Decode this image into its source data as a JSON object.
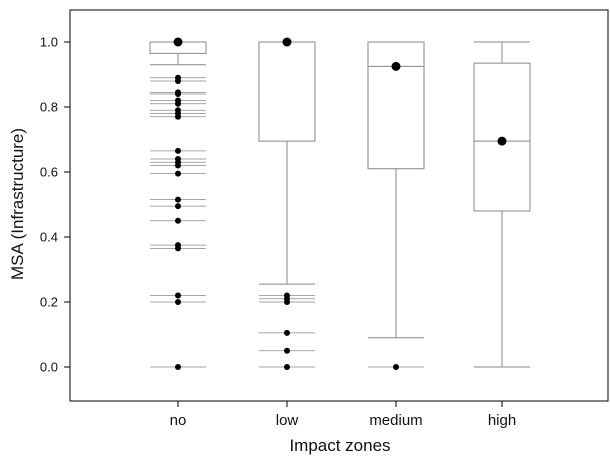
{
  "chart_data": {
    "type": "box",
    "title": "",
    "xlabel": "Impact zones",
    "ylabel": "MSA (Infrastructure)",
    "ylim": [
      -0.1,
      1.1
    ],
    "yticks": [
      "0.0",
      "0.2",
      "0.4",
      "0.6",
      "0.8",
      "1.0"
    ],
    "categories": [
      "no",
      "low",
      "medium",
      "high"
    ],
    "boxes": [
      {
        "category": "no",
        "q1": 0.965,
        "median": 1.0,
        "q3": 1.0,
        "whisker_low": 0.93,
        "whisker_high": 1.0,
        "mean": 1.0,
        "outliers": [
          0.89,
          0.88,
          0.845,
          0.84,
          0.82,
          0.81,
          0.79,
          0.78,
          0.77,
          0.665,
          0.64,
          0.63,
          0.62,
          0.595,
          0.515,
          0.495,
          0.45,
          0.375,
          0.365,
          0.22,
          0.2,
          0.0
        ]
      },
      {
        "category": "low",
        "q1": 0.695,
        "median": 1.0,
        "q3": 1.0,
        "whisker_low": 0.255,
        "whisker_high": 1.0,
        "mean": 1.0,
        "outliers": [
          0.22,
          0.21,
          0.2,
          0.105,
          0.05,
          0.0
        ]
      },
      {
        "category": "medium",
        "q1": 0.61,
        "median": 0.925,
        "q3": 1.0,
        "whisker_low": 0.09,
        "whisker_high": 1.0,
        "mean": 0.925,
        "outliers": [
          0.0
        ]
      },
      {
        "category": "high",
        "q1": 0.48,
        "median": 0.695,
        "q3": 0.935,
        "whisker_low": 0.0,
        "whisker_high": 1.0,
        "mean": 0.695,
        "outliers": []
      }
    ]
  }
}
